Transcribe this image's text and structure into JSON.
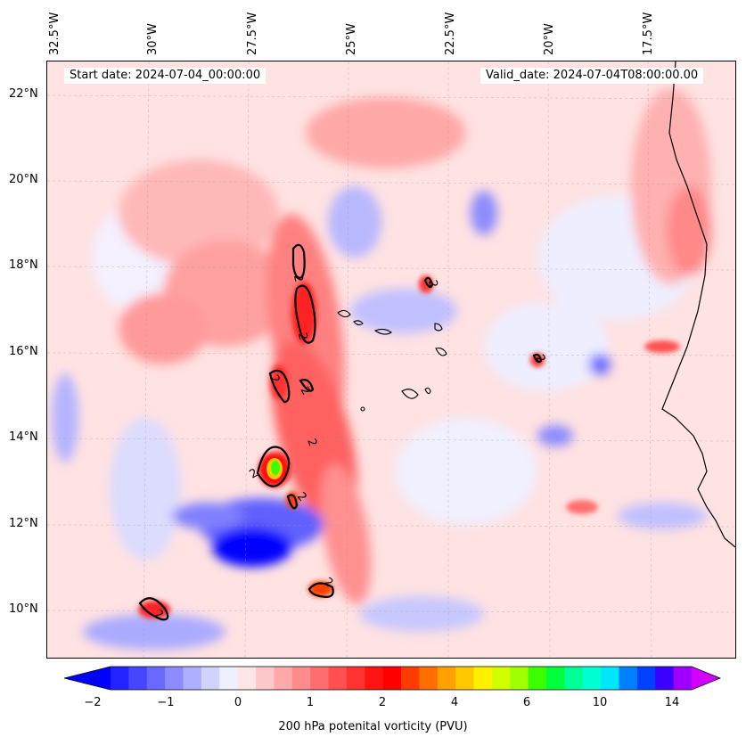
{
  "header": {
    "start_date": "Start date: 2024-07-04_00:00:00",
    "valid_date": "Valid_date: 2024-07-04T08:00:00.00"
  },
  "axes": {
    "lon_labels": [
      "32.5°W",
      "30°W",
      "27.5°W",
      "25°W",
      "22.5°W",
      "20°W",
      "17.5°W"
    ],
    "lat_labels": [
      "22°N",
      "20°N",
      "18°N",
      "16°N",
      "14°N",
      "12°N",
      "10°N"
    ]
  },
  "contour": {
    "level_label": "2"
  },
  "colorbar": {
    "label": "200 hPa potenital vorticity (PVU)",
    "ticks": [
      "−2",
      "−1",
      "0",
      "1",
      "2",
      "4",
      "6",
      "10",
      "14"
    ],
    "colors": [
      "#0000ff",
      "#2323ff",
      "#4646ff",
      "#6969ff",
      "#8c8cff",
      "#afafff",
      "#d2d2ff",
      "#efefff",
      "#ffe6e6",
      "#ffc8c8",
      "#ffaaaa",
      "#ff8c8c",
      "#ff6e6e",
      "#ff5050",
      "#ff3232",
      "#ff1414",
      "#ff0000",
      "#ff3c00",
      "#ff6e00",
      "#ffa000",
      "#ffc800",
      "#fff000",
      "#d2ff00",
      "#a0ff00",
      "#3cff00",
      "#00ff3c",
      "#00ff96",
      "#00ffd2",
      "#00e6ff",
      "#0080ff",
      "#0040ff",
      "#3c00ff",
      "#a000ff",
      "#d200ff"
    ]
  }
}
